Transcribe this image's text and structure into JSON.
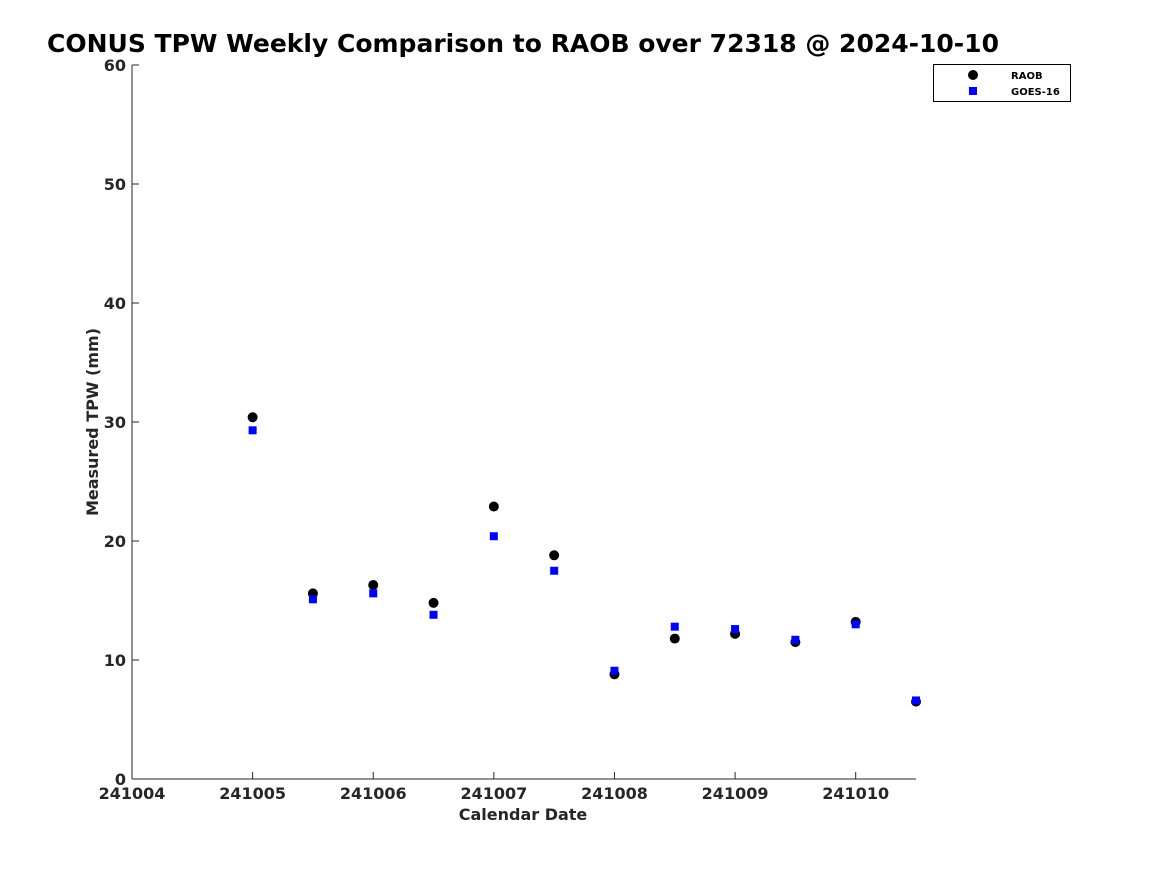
{
  "chart_data": {
    "type": "scatter",
    "title": "CONUS TPW Weekly Comparison to RAOB over 72318 @ 2024-10-10",
    "xlabel": "Calendar Date",
    "ylabel": "Measured TPW (mm)",
    "xlim": [
      241004,
      241010.5
    ],
    "ylim": [
      0,
      60
    ],
    "xticks": [
      241004,
      241005,
      241006,
      241007,
      241008,
      241009,
      241010
    ],
    "xtick_labels": [
      "241004",
      "241005",
      "241006",
      "241007",
      "241008",
      "241009",
      "241010"
    ],
    "yticks": [
      0,
      10,
      20,
      30,
      40,
      50,
      60
    ],
    "ytick_labels": [
      "0",
      "10",
      "20",
      "30",
      "40",
      "50",
      "60"
    ],
    "grid": false,
    "legend_position": "top-right",
    "x": [
      241005,
      241005.5,
      241006,
      241006.5,
      241007,
      241007.5,
      241008,
      241008.5,
      241009,
      241009.5,
      241010,
      241010.5
    ],
    "series": [
      {
        "name": "RAOB",
        "marker": "circle",
        "color": "#000000",
        "values": [
          30.4,
          15.6,
          16.3,
          14.8,
          22.9,
          18.8,
          8.8,
          11.8,
          12.2,
          11.5,
          13.2,
          6.5
        ]
      },
      {
        "name": "GOES-16",
        "marker": "square",
        "color": "#0000ff",
        "values": [
          29.3,
          15.1,
          15.6,
          13.8,
          20.4,
          17.5,
          9.1,
          12.8,
          12.6,
          11.7,
          13.0,
          6.6
        ]
      }
    ]
  }
}
